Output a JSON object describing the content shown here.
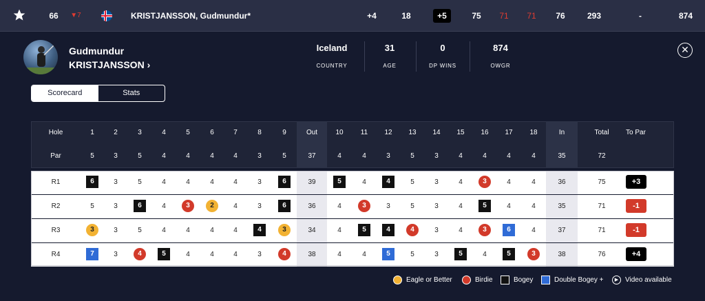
{
  "top": {
    "position": "66",
    "movement": "▼7",
    "player": "KRISTJANSSON, Gudmundur*",
    "to_par_now": "+4",
    "thru": "18",
    "total_par": "+5",
    "r1": "75",
    "r2": "71",
    "r3": "71",
    "r4": "76",
    "total": "293",
    "dash": "-",
    "owgr": "874"
  },
  "player": {
    "first": "Gudmundur",
    "last": "KRISTJANSSON",
    "arrow": "›",
    "stats": [
      {
        "value": "Iceland",
        "label": "COUNTRY"
      },
      {
        "value": "31",
        "label": "AGE"
      },
      {
        "value": "0",
        "label": "DP WINS"
      },
      {
        "value": "874",
        "label": "OWGR"
      }
    ]
  },
  "tabs": [
    "Scorecard",
    "Stats"
  ],
  "card": {
    "hole_label": "Hole",
    "par_label": "Par",
    "out_label": "Out",
    "in_label": "In",
    "total_label": "Total",
    "topar_label": "To Par",
    "holes": [
      "1",
      "2",
      "3",
      "4",
      "5",
      "6",
      "7",
      "8",
      "9",
      "Out",
      "10",
      "11",
      "12",
      "13",
      "14",
      "15",
      "16",
      "17",
      "18",
      "In",
      "Total",
      "To Par"
    ],
    "par": [
      "5",
      "3",
      "5",
      "4",
      "4",
      "4",
      "4",
      "3",
      "5",
      "37",
      "4",
      "4",
      "3",
      "5",
      "3",
      "4",
      "4",
      "4",
      "4",
      "35",
      "72",
      ""
    ],
    "rounds": [
      {
        "label": "R1",
        "scores": [
          "6",
          "3",
          "5",
          "4",
          "4",
          "4",
          "4",
          "3",
          "6",
          "39",
          "5",
          "4",
          "4",
          "5",
          "3",
          "4",
          "3",
          "4",
          "4",
          "36",
          "75",
          "+3"
        ],
        "marks": [
          "bogey",
          "",
          "",
          "",
          "",
          "",
          "",
          "",
          "bogey",
          "",
          "bogey",
          "",
          "bogey",
          "",
          "",
          "",
          "birdie",
          "",
          "",
          "",
          "",
          ""
        ],
        "topar_color": "#000000"
      },
      {
        "label": "R2",
        "scores": [
          "5",
          "3",
          "6",
          "4",
          "3",
          "2",
          "4",
          "3",
          "6",
          "36",
          "4",
          "3",
          "3",
          "5",
          "3",
          "4",
          "5",
          "4",
          "4",
          "35",
          "71",
          "-1"
        ],
        "marks": [
          "",
          "",
          "bogey",
          "",
          "birdie",
          "eagle",
          "",
          "",
          "bogey",
          "",
          "",
          "birdie",
          "",
          "",
          "",
          "",
          "bogey",
          "",
          "",
          "",
          "",
          ""
        ],
        "topar_color": "#d23a2a"
      },
      {
        "label": "R3",
        "scores": [
          "3",
          "3",
          "5",
          "4",
          "4",
          "4",
          "4",
          "4",
          "3",
          "34",
          "4",
          "5",
          "4",
          "4",
          "3",
          "4",
          "3",
          "6",
          "4",
          "37",
          "71",
          "-1"
        ],
        "marks": [
          "eagle",
          "",
          "",
          "",
          "",
          "",
          "",
          "bogey",
          "eagle",
          "",
          "",
          "bogey",
          "bogey",
          "birdie",
          "",
          "",
          "birdie",
          "dbl",
          "",
          "",
          "",
          ""
        ],
        "topar_color": "#d23a2a"
      },
      {
        "label": "R4",
        "scores": [
          "7",
          "3",
          "4",
          "5",
          "4",
          "4",
          "4",
          "3",
          "4",
          "38",
          "4",
          "4",
          "5",
          "5",
          "3",
          "5",
          "4",
          "5",
          "3",
          "38",
          "76",
          "+4"
        ],
        "marks": [
          "dbl",
          "",
          "birdie",
          "bogey",
          "",
          "",
          "",
          "",
          "birdie",
          "",
          "",
          "",
          "dbl",
          "",
          "",
          "bogey",
          "",
          "bogey",
          "birdie",
          "",
          "",
          ""
        ],
        "topar_color": "#000000"
      }
    ]
  },
  "legend": {
    "eagle": "Eagle or Better",
    "birdie": "Birdie",
    "bogey": "Bogey",
    "double": "Double Bogey +",
    "video": "Video available"
  }
}
